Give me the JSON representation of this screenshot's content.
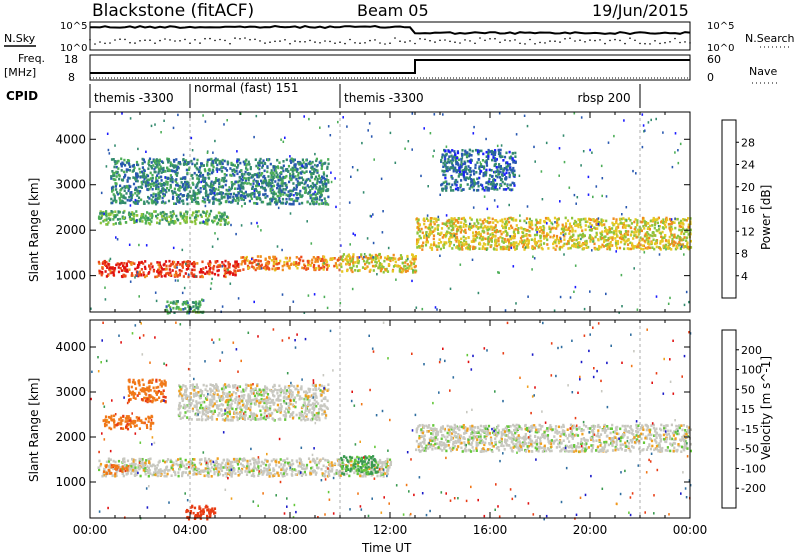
{
  "header": {
    "title": "Blackstone (fitACF)",
    "beam": "Beam 05",
    "date": "19/Jun/2015"
  },
  "top_panels": {
    "nsky_label": "N.Sky",
    "nsky_ticks": [
      "10^5",
      "10^0"
    ],
    "nsearch_label": "N.Search",
    "nsearch_ticks": [
      "10^5",
      "10^0"
    ],
    "freq_label": "Freq.",
    "freq_unit": "[MHz]",
    "freq_ticks": [
      "18",
      "8"
    ],
    "nave_label": "Nave",
    "nave_ticks": [
      "60",
      "0"
    ],
    "cpid_label": "CPID",
    "cpid_segments": [
      {
        "label": "themis -3300",
        "start": 0,
        "end": 4
      },
      {
        "label": "normal (fast) 151",
        "start": 4,
        "end": 10
      },
      {
        "label": "themis -3300",
        "start": 10,
        "end": 22
      },
      {
        "label": "rbsp 200",
        "start": 22,
        "end": 24
      }
    ]
  },
  "chart_data": [
    {
      "type": "heatmap",
      "name": "power",
      "ylabel": "Slant Range [km]",
      "yticks": [
        1000,
        2000,
        3000,
        4000
      ],
      "ylim": [
        200,
        4600
      ],
      "xlim": [
        0,
        24
      ],
      "colorbar_label": "Power [dB]",
      "colorbar_ticks": [
        "28",
        "24",
        "20",
        "16",
        "12",
        "8",
        "4"
      ],
      "colorbar_colors": [
        "#1a1aff",
        "#2858b0",
        "#338a6e",
        "#4cae57",
        "#8cc43c",
        "#e6c825",
        "#f08c1e",
        "#ec4a1a",
        "#e01010"
      ],
      "bands": [
        {
          "t0": 0.3,
          "t1": 6.0,
          "r0": 1000,
          "r1": 1350,
          "power": 28
        },
        {
          "t0": 6.0,
          "t1": 10.0,
          "r0": 1150,
          "r1": 1450,
          "power": 24
        },
        {
          "t0": 10.0,
          "t1": 13.0,
          "r0": 1100,
          "r1": 1500,
          "power": 20
        },
        {
          "t0": 0.3,
          "t1": 5.5,
          "r0": 2150,
          "r1": 2450,
          "power": 14
        },
        {
          "t0": 13.0,
          "t1": 24.0,
          "r0": 1600,
          "r1": 2300,
          "power": 20
        },
        {
          "t0": 0.8,
          "t1": 9.5,
          "r0": 2600,
          "r1": 3600,
          "power": 10
        },
        {
          "t0": 14.0,
          "t1": 17.0,
          "r0": 2900,
          "r1": 3800,
          "power": 8
        },
        {
          "t0": 3.0,
          "t1": 4.5,
          "r0": 200,
          "r1": 500,
          "power": 12
        }
      ]
    },
    {
      "type": "heatmap",
      "name": "velocity",
      "ylabel": "Slant Range [km]",
      "yticks": [
        1000,
        2000,
        3000,
        4000
      ],
      "ylim": [
        200,
        4600
      ],
      "xlim": [
        0,
        24
      ],
      "xlabel": "Time UT",
      "xticks": [
        "00:00",
        "04:00",
        "08:00",
        "12:00",
        "16:00",
        "20:00",
        "00:00"
      ],
      "colorbar_label": "Velocity [m s^-1]",
      "colorbar_ticks": [
        "200",
        "100",
        "50",
        "15",
        "-15",
        "-50",
        "-100",
        "-200"
      ],
      "colorbar_colors": [
        "#1a1ac8",
        "#2f6ea0",
        "#3a9a50",
        "#64c83a",
        "#c8c8c0",
        "#f0a01e",
        "#f07818",
        "#e83c14",
        "#e01010"
      ],
      "bands": [
        {
          "t0": 0.3,
          "t1": 12.0,
          "r0": 1150,
          "r1": 1550,
          "vel": 0
        },
        {
          "t0": 13.0,
          "t1": 24.0,
          "r0": 1700,
          "r1": 2300,
          "vel": 0
        },
        {
          "t0": 3.5,
          "t1": 9.5,
          "r0": 2400,
          "r1": 3200,
          "vel": 0
        },
        {
          "t0": 0.5,
          "t1": 2.5,
          "r0": 2200,
          "r1": 2500,
          "vel": -60
        },
        {
          "t0": 1.5,
          "t1": 3.0,
          "r0": 2800,
          "r1": 3300,
          "vel": -60
        },
        {
          "t0": 0.5,
          "t1": 1.5,
          "r0": 1200,
          "r1": 1400,
          "vel": -60
        },
        {
          "t0": 10.0,
          "t1": 11.5,
          "r0": 1200,
          "r1": 1600,
          "vel": 40
        },
        {
          "t0": 3.8,
          "t1": 5.0,
          "r0": 200,
          "r1": 500,
          "vel": -120
        }
      ]
    }
  ]
}
